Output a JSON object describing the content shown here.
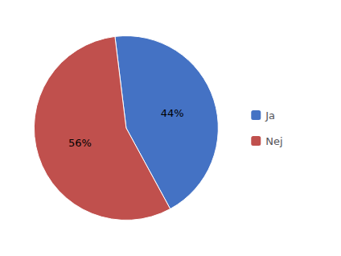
{
  "chart_data": {
    "type": "pie",
    "categories": [
      "Ja",
      "Nej"
    ],
    "values": [
      44,
      56
    ],
    "value_labels": [
      "44%",
      "56%"
    ],
    "colors": [
      "#4472C4",
      "#C0504D"
    ],
    "data_labels": true,
    "legend": "right"
  }
}
